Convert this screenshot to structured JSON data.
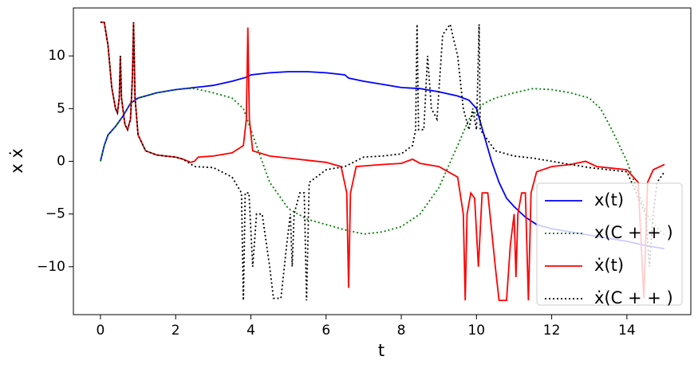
{
  "chart_data": {
    "type": "line",
    "x_label": "t",
    "y_label": "x ẋ",
    "xlim": [
      -0.72,
      15.7
    ],
    "ylim": [
      -14.55,
      14.55
    ],
    "xticks": [
      0,
      2,
      4,
      6,
      8,
      10,
      12,
      14
    ],
    "yticks": [
      {
        "value": -10,
        "label": "−10"
      },
      {
        "value": -5,
        "label": "−5"
      },
      0,
      5,
      10
    ],
    "legend": "lower right",
    "series": [
      {
        "name": "x(t)",
        "color": "#0000ff",
        "linestyle": "solid",
        "x": [
          0,
          0.1,
          0.2,
          0.4,
          0.6,
          0.8,
          1.0,
          1.5,
          2,
          2.5,
          3,
          3.5,
          3.9,
          4.0,
          4.5,
          5,
          5.5,
          6,
          6.5,
          6.6,
          7,
          7.5,
          8,
          8.5,
          9,
          9.5,
          9.8,
          10,
          10.2,
          10.4,
          10.6,
          10.8,
          11,
          11.3,
          11.6,
          12,
          12.5,
          13,
          13.5,
          14,
          14.5,
          15
        ],
        "values": [
          0,
          1.5,
          2.5,
          3.3,
          4.3,
          5.5,
          6.0,
          6.5,
          6.8,
          7,
          7.2,
          7.6,
          8.0,
          8.2,
          8.4,
          8.5,
          8.5,
          8.4,
          8.2,
          7.9,
          7.6,
          7.3,
          7.0,
          6.9,
          6.6,
          6.2,
          5.8,
          5.0,
          2.5,
          0,
          -2,
          -3.5,
          -4.3,
          -5.3,
          -6,
          -6.4,
          -6.7,
          -7,
          -7.3,
          -7.6,
          -8,
          -8.3
        ]
      },
      {
        "name": "x(C + + )",
        "color": "#008000",
        "linestyle": "dotted",
        "x": [
          0,
          0.1,
          0.2,
          0.4,
          0.6,
          0.8,
          1.0,
          1.5,
          2,
          2.3,
          2.5,
          3,
          3.5,
          3.8,
          4,
          4.2,
          4.5,
          5,
          5.5,
          6,
          6.5,
          7,
          7.5,
          8,
          8.5,
          9,
          9.5,
          9.8,
          10.2,
          10.5,
          11,
          11.5,
          12,
          12.5,
          13,
          13.3,
          13.6,
          14,
          14.3,
          14.6,
          15
        ],
        "values": [
          0,
          1.5,
          2.5,
          3.3,
          4.3,
          5.5,
          6.0,
          6.5,
          6.8,
          6.9,
          6.9,
          6.5,
          6,
          5,
          3,
          1,
          -2,
          -4.5,
          -5.5,
          -6,
          -6.5,
          -6.9,
          -6.7,
          -6.2,
          -5,
          -2.5,
          1.5,
          4,
          5.5,
          6,
          6.5,
          6.9,
          6.8,
          6.5,
          6,
          5,
          3,
          0,
          -3,
          -5.5,
          -7
        ]
      },
      {
        "name": "ẋ(t)",
        "color": "#ff0000",
        "linestyle": "solid",
        "x": [
          0,
          0.1,
          0.2,
          0.3,
          0.4,
          0.45,
          0.5,
          0.53,
          0.56,
          0.65,
          0.72,
          0.8,
          0.85,
          0.88,
          0.92,
          1.0,
          1.2,
          1.5,
          2,
          2.2,
          2.4,
          2.5,
          2.6,
          3,
          3.5,
          3.8,
          3.88,
          3.92,
          3.96,
          4.05,
          4.5,
          5,
          6,
          6.4,
          6.55,
          6.6,
          6.65,
          6.8,
          7.5,
          8,
          8.3,
          8.5,
          9,
          9.5,
          9.65,
          9.7,
          9.75,
          9.85,
          9.95,
          10.05,
          10.15,
          10.3,
          10.5,
          10.6,
          10.8,
          10.9,
          11.0,
          11.05,
          11.1,
          11.2,
          11.3,
          11.38,
          11.45,
          11.6,
          12,
          12.5,
          12.9,
          13.2,
          14,
          14.3,
          14.45,
          14.55,
          14.7,
          15
        ],
        "values": [
          13.2,
          13.2,
          11,
          7,
          5,
          4.6,
          6,
          10,
          6,
          3.5,
          3,
          4,
          8,
          13.2,
          6,
          2.5,
          1,
          0.6,
          0.4,
          0.2,
          -0.1,
          0,
          0.4,
          0.5,
          0.8,
          1.5,
          4,
          12.7,
          4,
          1,
          0.5,
          0.3,
          -0.1,
          -0.5,
          -3,
          -12,
          -3,
          -0.5,
          -0.3,
          -0.2,
          0.2,
          -0.2,
          -0.5,
          -1.5,
          -5,
          -13.2,
          -5,
          -3,
          -3.5,
          -10,
          -3,
          -3,
          -10,
          -13.2,
          -13.2,
          -8,
          -5,
          -11,
          -5,
          -3,
          -3,
          -13.2,
          -3,
          -1,
          -0.5,
          -0.3,
          0,
          -0.5,
          -0.8,
          -2,
          -13,
          -2,
          -0.8,
          -0.3
        ]
      },
      {
        "name": "ẋ(C + + )",
        "color": "#000000",
        "linestyle": "dotted",
        "x": [
          0,
          0.1,
          0.2,
          0.3,
          0.4,
          0.45,
          0.5,
          0.53,
          0.56,
          0.65,
          0.72,
          0.8,
          0.85,
          0.88,
          0.92,
          1.0,
          1.2,
          1.5,
          2,
          2.2,
          2.5,
          3,
          3.5,
          3.75,
          3.8,
          3.85,
          3.95,
          4.05,
          4.15,
          4.3,
          4.5,
          4.6,
          4.8,
          4.95,
          5.05,
          5.1,
          5.15,
          5.3,
          5.42,
          5.48,
          5.55,
          6,
          6.5,
          7,
          7.5,
          8,
          8.3,
          8.38,
          8.42,
          8.46,
          8.6,
          8.7,
          8.8,
          8.95,
          9.1,
          9.3,
          9.5,
          9.65,
          9.8,
          9.9,
          10.0,
          10.07,
          10.1,
          10.3,
          10.5,
          11,
          11.5,
          12,
          12.5,
          13,
          14,
          14.5,
          14.6,
          14.7,
          14.8,
          15
        ],
        "values": [
          13.2,
          13.2,
          11,
          7,
          5,
          4.6,
          6,
          10,
          6,
          3.5,
          3,
          4,
          8,
          13.2,
          6,
          2.5,
          1,
          0.6,
          0.4,
          0.2,
          -0.5,
          -0.6,
          -1.5,
          -3,
          -13.2,
          -3,
          -3,
          -10,
          -5,
          -5,
          -10,
          -13,
          -13,
          -8,
          -5,
          -10,
          -5,
          -3,
          -3,
          -13.2,
          -2,
          -0.8,
          -0.5,
          0.4,
          0.5,
          0.7,
          1.5,
          3,
          13,
          3,
          3,
          10,
          5,
          4,
          12,
          13,
          10,
          5,
          3,
          5,
          3,
          13,
          3,
          2,
          1,
          0.5,
          0.3,
          0,
          -0.3,
          -0.6,
          -1,
          -5,
          -10,
          -5,
          -2,
          -1
        ]
      }
    ]
  }
}
